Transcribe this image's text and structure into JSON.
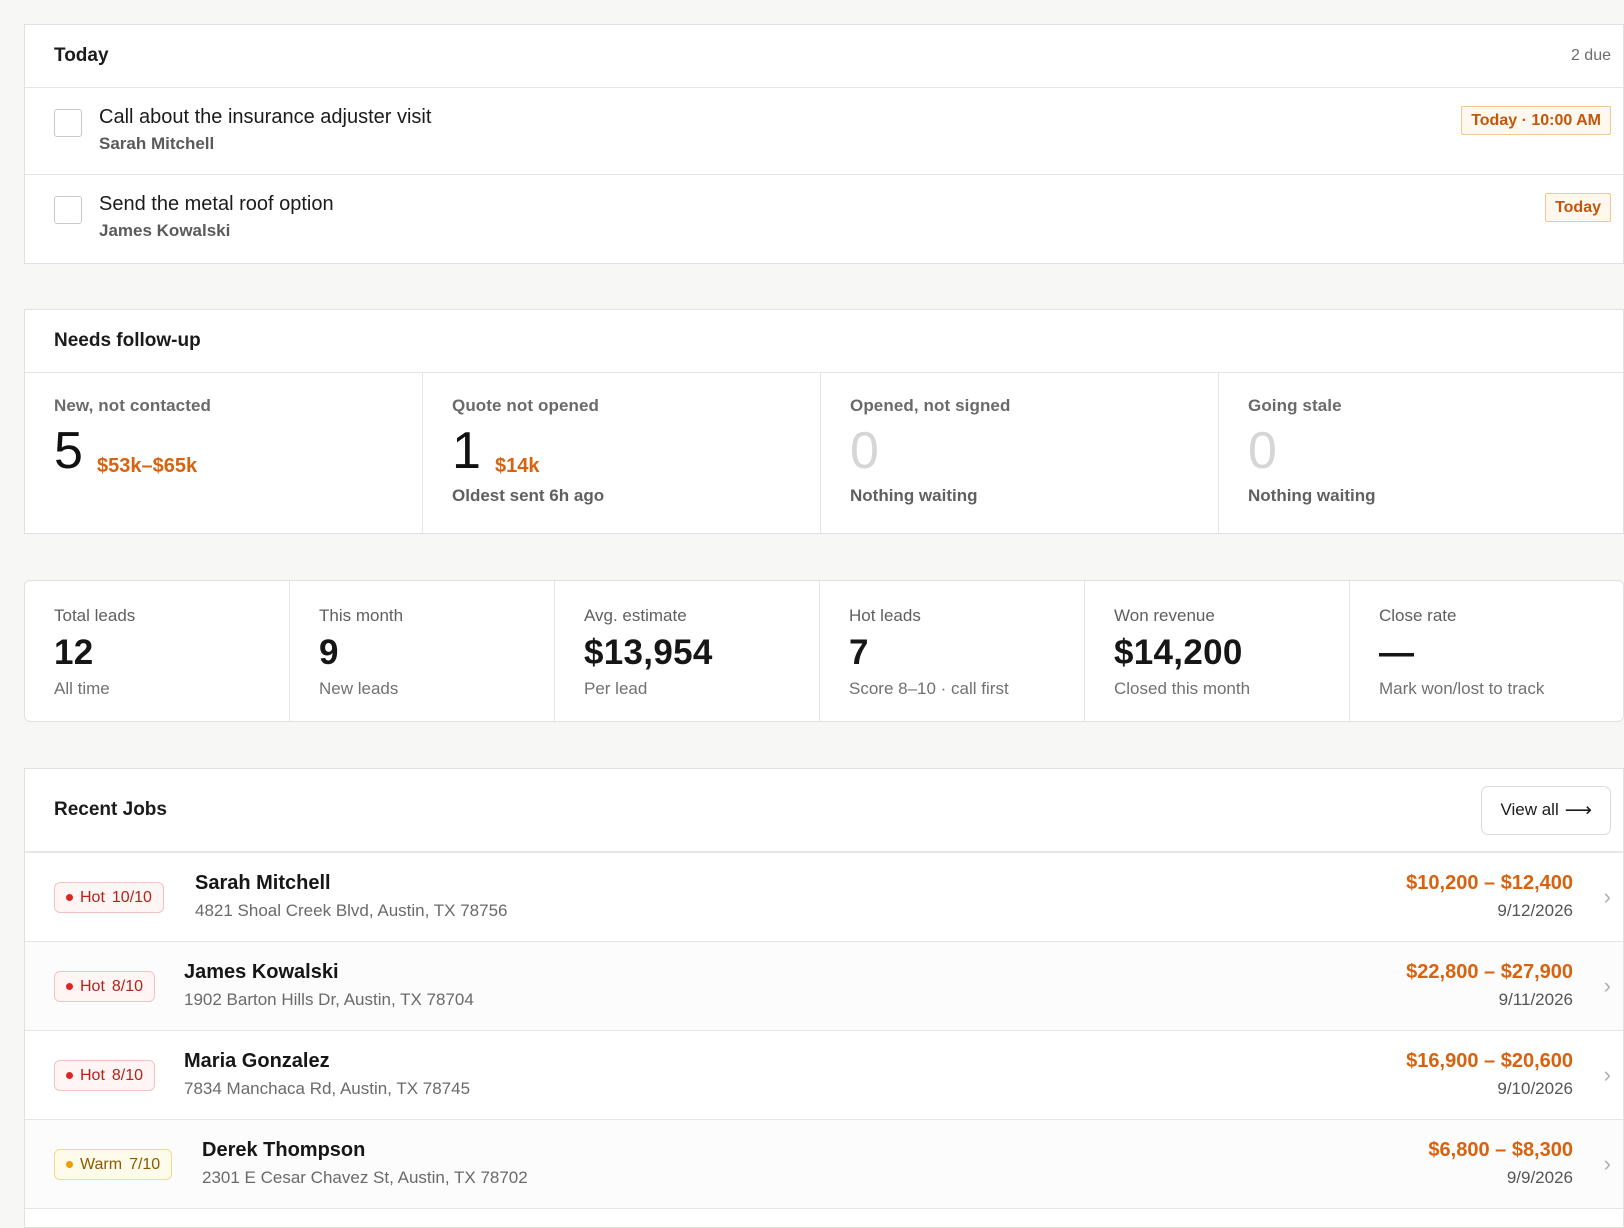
{
  "today": {
    "title": "Today",
    "due_count": "2 due",
    "tasks": [
      {
        "title": "Call about the insurance adjuster visit",
        "person": "Sarah Mitchell",
        "due": "Today · 10:00 AM"
      },
      {
        "title": "Send the metal roof option",
        "person": "James Kowalski",
        "due": "Today"
      }
    ]
  },
  "followup": {
    "title": "Needs follow-up",
    "cells": [
      {
        "label": "New, not contacted",
        "count": "5",
        "value": "$53k–$65k",
        "sub": ""
      },
      {
        "label": "Quote not opened",
        "count": "1",
        "value": "$14k",
        "sub": "Oldest sent 6h ago"
      },
      {
        "label": "Opened, not signed",
        "count": "0",
        "value": "",
        "sub": "Nothing waiting"
      },
      {
        "label": "Going stale",
        "count": "0",
        "value": "",
        "sub": "Nothing waiting"
      }
    ]
  },
  "stats": [
    {
      "label": "Total leads",
      "value": "12",
      "sub": "All time"
    },
    {
      "label": "This month",
      "value": "9",
      "sub": "New leads"
    },
    {
      "label": "Avg. estimate",
      "value": "$13,954",
      "sub": "Per lead"
    },
    {
      "label": "Hot leads",
      "value": "7",
      "sub": "Score 8–10 · call first"
    },
    {
      "label": "Won revenue",
      "value": "$14,200",
      "sub": "Closed this month"
    },
    {
      "label": "Close rate",
      "value": "—",
      "sub": "Mark won/lost to track"
    }
  ],
  "jobs": {
    "title": "Recent Jobs",
    "view_all": "View all",
    "items": [
      {
        "tier": "Hot",
        "score": "10/10",
        "name": "Sarah Mitchell",
        "address": "4821 Shoal Creek Blvd, Austin, TX 78756",
        "range": "$10,200 – $12,400",
        "date": "9/12/2026"
      },
      {
        "tier": "Hot",
        "score": "8/10",
        "name": "James Kowalski",
        "address": "1902 Barton Hills Dr, Austin, TX 78704",
        "range": "$22,800 – $27,900",
        "date": "9/11/2026"
      },
      {
        "tier": "Hot",
        "score": "8/10",
        "name": "Maria Gonzalez",
        "address": "7834 Manchaca Rd, Austin, TX 78745",
        "range": "$16,900 – $20,600",
        "date": "9/10/2026"
      },
      {
        "tier": "Warm",
        "score": "7/10",
        "name": "Derek Thompson",
        "address": "2301 E Cesar Chavez St, Austin, TX 78702",
        "range": "$6,800 – $8,300",
        "date": "9/9/2026"
      }
    ]
  },
  "colors": {
    "accent_orange": "#d9620e",
    "hot_red": "#dc2626",
    "warm_amber": "#e8a100"
  }
}
